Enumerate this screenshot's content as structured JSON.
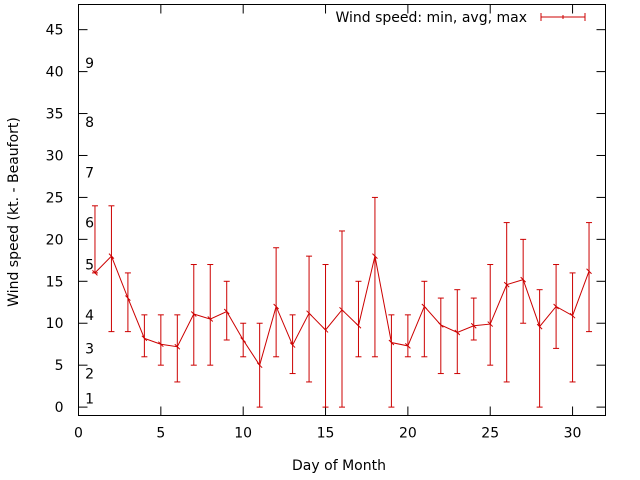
{
  "chart_data": {
    "type": "line",
    "xlabel": "Day of Month",
    "ylabel": "Wind speed (kt. - Beaufort)",
    "xlim": [
      0,
      32
    ],
    "ylim": [
      -1,
      48
    ],
    "x_ticks": [
      0,
      5,
      10,
      15,
      20,
      25,
      30
    ],
    "y_ticks": [
      0,
      5,
      10,
      15,
      20,
      25,
      30,
      35,
      40,
      45
    ],
    "grid": false,
    "legend_position": "top-right",
    "beaufort_labels": [
      {
        "label": "1",
        "y": 1
      },
      {
        "label": "2",
        "y": 4
      },
      {
        "label": "3",
        "y": 7
      },
      {
        "label": "4",
        "y": 11
      },
      {
        "label": "5",
        "y": 17
      },
      {
        "label": "6",
        "y": 22
      },
      {
        "label": "7",
        "y": 28
      },
      {
        "label": "8",
        "y": 34
      },
      {
        "label": "9",
        "y": 41
      }
    ],
    "series": [
      {
        "name": "Wind speed: min, avg, max",
        "color": "#cc0000",
        "points": [
          {
            "x": 1,
            "min": 16,
            "avg": 16,
            "max": 24
          },
          {
            "x": 2,
            "min": 9,
            "avg": 18,
            "max": 24
          },
          {
            "x": 3,
            "min": 9,
            "avg": 13,
            "max": 16
          },
          {
            "x": 4,
            "min": 6,
            "avg": 8.2,
            "max": 11
          },
          {
            "x": 5,
            "min": 5,
            "avg": 7.5,
            "max": 11
          },
          {
            "x": 6,
            "min": 3,
            "avg": 7.2,
            "max": 11
          },
          {
            "x": 7,
            "min": 5,
            "avg": 11.1,
            "max": 17
          },
          {
            "x": 8,
            "min": 5,
            "avg": 10.5,
            "max": 17
          },
          {
            "x": 9,
            "min": 8,
            "avg": 11.4,
            "max": 15
          },
          {
            "x": 10,
            "min": 6,
            "avg": 8,
            "max": 10
          },
          {
            "x": 11,
            "min": 0,
            "avg": 5,
            "max": 10
          },
          {
            "x": 12,
            "min": 6,
            "avg": 12,
            "max": 19
          },
          {
            "x": 13,
            "min": 4,
            "avg": 7.4,
            "max": 11
          },
          {
            "x": 14,
            "min": 3,
            "avg": 11.2,
            "max": 18
          },
          {
            "x": 15,
            "min": 0,
            "avg": 9.2,
            "max": 17
          },
          {
            "x": 16,
            "min": 0,
            "avg": 11.6,
            "max": 21
          },
          {
            "x": 17,
            "min": 6,
            "avg": 9.7,
            "max": 15
          },
          {
            "x": 18,
            "min": 6,
            "avg": 18,
            "max": 25
          },
          {
            "x": 19,
            "min": 0,
            "avg": 7.7,
            "max": 11
          },
          {
            "x": 20,
            "min": 6,
            "avg": 7.3,
            "max": 11
          },
          {
            "x": 21,
            "min": 6,
            "avg": 12,
            "max": 15
          },
          {
            "x": 22,
            "min": 4,
            "avg": 9.8,
            "max": 13
          },
          {
            "x": 23,
            "min": 4,
            "avg": 8.9,
            "max": 14
          },
          {
            "x": 24,
            "min": 8,
            "avg": 9.7,
            "max": 13
          },
          {
            "x": 25,
            "min": 5,
            "avg": 9.9,
            "max": 17
          },
          {
            "x": 26,
            "min": 3,
            "avg": 14.6,
            "max": 22
          },
          {
            "x": 27,
            "min": 10,
            "avg": 15.2,
            "max": 20
          },
          {
            "x": 28,
            "min": 0,
            "avg": 9.6,
            "max": 14
          },
          {
            "x": 29,
            "min": 7,
            "avg": 12,
            "max": 17
          },
          {
            "x": 30,
            "min": 3,
            "avg": 10.9,
            "max": 16
          },
          {
            "x": 31,
            "min": 9,
            "avg": 16.2,
            "max": 22
          }
        ]
      }
    ]
  }
}
